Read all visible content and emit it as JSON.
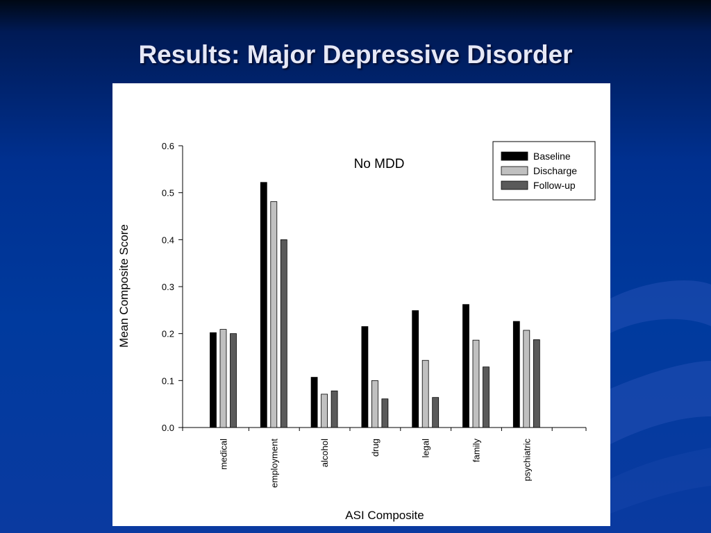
{
  "slide": {
    "title": "Results: Major Depressive Disorder"
  },
  "chart_data": {
    "type": "bar",
    "title": "No MDD",
    "xlabel": "ASI Composite",
    "ylabel": "Mean Composite Score",
    "ylim": [
      0,
      0.6
    ],
    "yticks": [
      "0.0",
      "0.1",
      "0.2",
      "0.3",
      "0.4",
      "0.5",
      "0.6"
    ],
    "grid": false,
    "legend_position": "top-right",
    "categories": [
      "medical",
      "employment",
      "alcohol",
      "drug",
      "legal",
      "family",
      "psychiatric"
    ],
    "series": [
      {
        "name": "Baseline",
        "color": "#000000",
        "values": [
          0.202,
          0.522,
          0.107,
          0.215,
          0.249,
          0.262,
          0.226
        ]
      },
      {
        "name": "Discharge",
        "color": "#c0c0c0",
        "values": [
          0.209,
          0.481,
          0.071,
          0.1,
          0.143,
          0.186,
          0.207
        ]
      },
      {
        "name": "Follow-up",
        "color": "#5a5a5a",
        "values": [
          0.2,
          0.4,
          0.078,
          0.061,
          0.064,
          0.129,
          0.187
        ]
      }
    ]
  }
}
